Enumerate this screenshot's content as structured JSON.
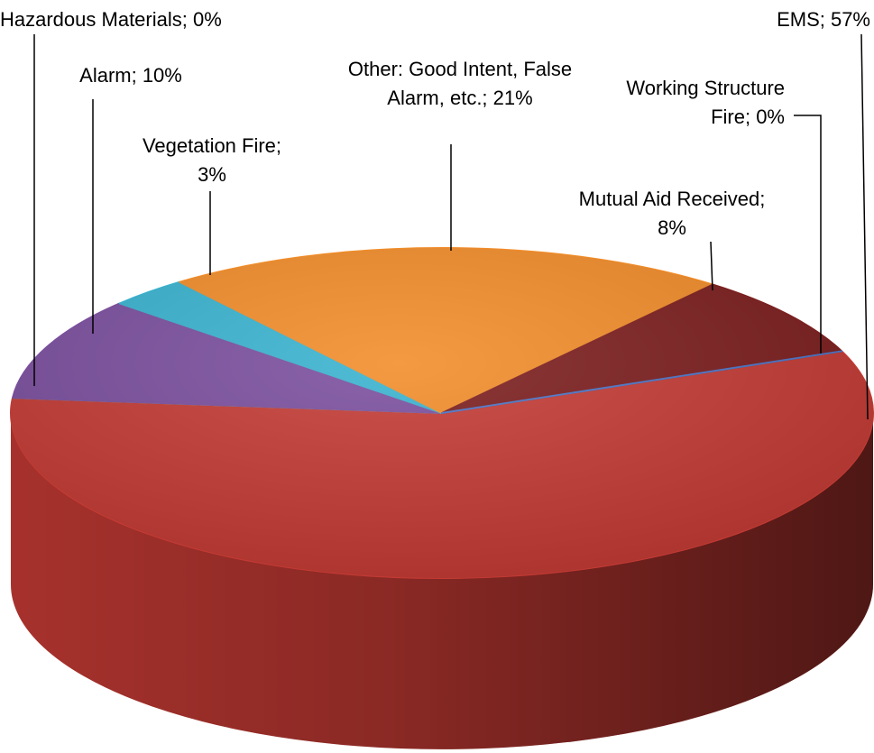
{
  "chart_data": {
    "type": "pie3d",
    "values": [
      57,
      0,
      10,
      3,
      21,
      8,
      0
    ],
    "value_labels": [
      "EMS; 57%",
      "Hazardous Materials; 0%",
      "Alarm; 10%",
      "Vegetation Fire; 3%",
      "Other: Good Intent, False Alarm, etc.; 21%",
      "Mutual Aid Received; 8%",
      "Working Structure Fire; 0%"
    ],
    "colors": [
      "#c43a34",
      "#a6c244",
      "#7a4e9e",
      "#38b2cf",
      "#f28c28",
      "#7c1d1d",
      "#4a74c8"
    ]
  }
}
